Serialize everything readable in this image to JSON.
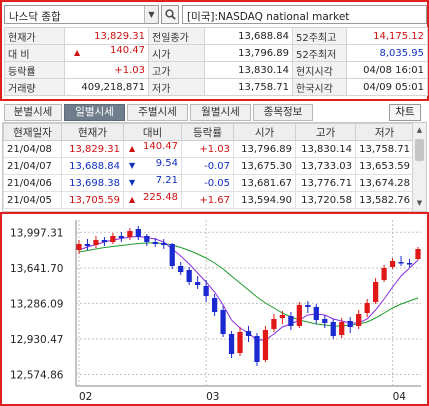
{
  "header": {
    "index_select": "나스닥 종합",
    "market_name": "[미국]:NASDAQ national market"
  },
  "quote": {
    "rows": [
      [
        {
          "label": "현재가",
          "value": "13,829.31",
          "color": "#d01010"
        },
        {
          "label": "전일종가",
          "value": "13,688.84",
          "color": "#222222"
        },
        {
          "label": "52주최고",
          "value": "14,175.12",
          "color": "#d01010"
        }
      ],
      [
        {
          "label": "대 비",
          "value": "140.47",
          "prefix": "▲",
          "color": "#d01010"
        },
        {
          "label": "시가",
          "value": "13,796.89",
          "color": "#222222"
        },
        {
          "label": "52주최저",
          "value": "8,035.95",
          "color": "#1030c0"
        }
      ],
      [
        {
          "label": "등락률",
          "value": "+1.03",
          "color": "#d01010"
        },
        {
          "label": "고가",
          "value": "13,830.14",
          "color": "#222222"
        },
        {
          "label": "현지시각",
          "value": "04/08 16:01",
          "color": "#222222"
        }
      ],
      [
        {
          "label": "거래량",
          "value": "409,218,871",
          "color": "#222222"
        },
        {
          "label": "저가",
          "value": "13,758.71",
          "color": "#222222"
        },
        {
          "label": "한국시각",
          "value": "04/09 05:01",
          "color": "#222222"
        }
      ]
    ]
  },
  "tabs": [
    "분별시세",
    "일별시세",
    "주별시세",
    "월별시세",
    "종목정보"
  ],
  "active_tab": 1,
  "chart_button": "차트",
  "daily": {
    "columns": [
      "현재일자",
      "현재가",
      "대비",
      "등락률",
      "시가",
      "고가",
      "저가"
    ],
    "rows": [
      {
        "date": "21/04/08",
        "close": "13,829.31",
        "dir": "up",
        "change": "140.47",
        "rate": "+1.03",
        "open": "13,796.89",
        "high": "13,830.14",
        "low": "13,758.71"
      },
      {
        "date": "21/04/07",
        "close": "13,688.84",
        "dir": "down",
        "change": "9.54",
        "rate": "-0.07",
        "open": "13,675.30",
        "high": "13,733.03",
        "low": "13,653.59"
      },
      {
        "date": "21/04/06",
        "close": "13,698.38",
        "dir": "down",
        "change": "7.21",
        "rate": "-0.05",
        "open": "13,681.67",
        "high": "13,776.71",
        "low": "13,674.28"
      },
      {
        "date": "21/04/05",
        "close": "13,705.59",
        "dir": "up",
        "change": "225.48",
        "rate": "+1.67",
        "open": "13,594.90",
        "high": "13,720.58",
        "low": "13,582.76"
      }
    ],
    "colors": {
      "up": "#d01010",
      "down": "#1030c0"
    }
  },
  "chart_data": {
    "type": "candlestick",
    "ylim": [
      12460,
      14120
    ],
    "ytick_values": [
      13997.31,
      13641.7,
      13286.09,
      12930.47,
      12574.86
    ],
    "ytick_labels": [
      "13,997.31",
      "13,641.70",
      "13,286.09",
      "12,930.47",
      "12,574.86"
    ],
    "xtick_labels": [
      {
        "label": "02",
        "index": 0
      },
      {
        "label": "03",
        "index": 15
      },
      {
        "label": "04",
        "index": 37
      }
    ],
    "candles": [
      [
        13820,
        13880,
        13780,
        13920
      ],
      [
        13880,
        13860,
        13820,
        13930
      ],
      [
        13870,
        13920,
        13840,
        13960
      ],
      [
        13920,
        13900,
        13860,
        13950
      ],
      [
        13900,
        13960,
        13880,
        13990
      ],
      [
        13960,
        13940,
        13900,
        14000
      ],
      [
        13950,
        14010,
        13920,
        14040
      ],
      [
        14030,
        13950,
        13920,
        14060
      ],
      [
        13960,
        13900,
        13860,
        13980
      ],
      [
        13900,
        13880,
        13850,
        13940
      ],
      [
        13890,
        13870,
        13830,
        13930
      ],
      [
        13880,
        13660,
        13630,
        13890
      ],
      [
        13660,
        13600,
        13570,
        13700
      ],
      [
        13620,
        13500,
        13470,
        13650
      ],
      [
        13500,
        13470,
        13430,
        13560
      ],
      [
        13460,
        13360,
        13300,
        13520
      ],
      [
        13340,
        13200,
        13160,
        13380
      ],
      [
        13220,
        12980,
        12950,
        13260
      ],
      [
        12980,
        12780,
        12740,
        13010
      ],
      [
        12790,
        13000,
        12760,
        13050
      ],
      [
        13010,
        12960,
        12900,
        13060
      ],
      [
        12960,
        12700,
        12660,
        12990
      ],
      [
        12720,
        13020,
        12700,
        13060
      ],
      [
        13030,
        13130,
        13000,
        13180
      ],
      [
        13140,
        13170,
        13080,
        13210
      ],
      [
        13160,
        13060,
        13020,
        13200
      ],
      [
        13060,
        13270,
        13040,
        13300
      ],
      [
        13270,
        13250,
        13190,
        13310
      ],
      [
        13250,
        13120,
        13080,
        13280
      ],
      [
        13130,
        13090,
        13040,
        13170
      ],
      [
        13100,
        12960,
        12930,
        13130
      ],
      [
        12970,
        13100,
        12940,
        13140
      ],
      [
        13110,
        13050,
        12990,
        13150
      ],
      [
        13060,
        13180,
        13030,
        13220
      ],
      [
        13190,
        13290,
        13150,
        13330
      ],
      [
        13300,
        13500,
        13280,
        13540
      ],
      [
        13520,
        13640,
        13500,
        13670
      ],
      [
        13650,
        13710,
        13630,
        13740
      ],
      [
        13700,
        13690,
        13660,
        13760
      ],
      [
        13690,
        13680,
        13650,
        13730
      ],
      [
        13730,
        13830,
        13720,
        13850
      ]
    ],
    "ma_short": [
      13820,
      13850,
      13875,
      13900,
      13920,
      13935,
      13950,
      13955,
      13945,
      13930,
      13900,
      13830,
      13760,
      13680,
      13590,
      13500,
      13400,
      13270,
      13120,
      13040,
      12990,
      12920,
      12920,
      12980,
      13050,
      13080,
      13120,
      13170,
      13180,
      13170,
      13130,
      13110,
      13090,
      13090,
      13130,
      13220,
      13330,
      13450,
      13560,
      13640,
      13720
    ],
    "ma_long": [
      13800,
      13815,
      13830,
      13845,
      13855,
      13865,
      13875,
      13885,
      13890,
      13890,
      13885,
      13870,
      13845,
      13815,
      13780,
      13740,
      13690,
      13630,
      13560,
      13490,
      13420,
      13350,
      13290,
      13240,
      13190,
      13150,
      13120,
      13100,
      13080,
      13070,
      13060,
      13060,
      13070,
      13080,
      13100,
      13140,
      13190,
      13240,
      13280,
      13310,
      13340
    ],
    "colors": {
      "up": "#e01818",
      "down": "#1a2ad0",
      "ma_short": "#8a2be2",
      "ma_long": "#1f9a2a",
      "grid": "#c0c0c0"
    }
  }
}
